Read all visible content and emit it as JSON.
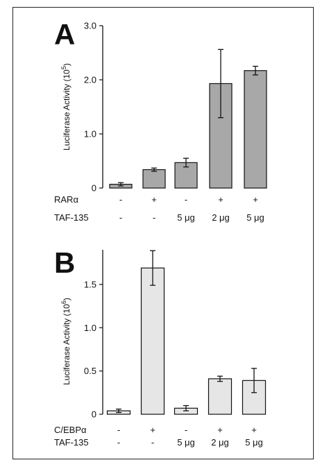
{
  "chart_data": [
    {
      "type": "bar",
      "panel": "A",
      "ylabel": "Luciferase Activity",
      "yunit_base": "(10",
      "yunit_exp": "5",
      "yunit_close": ")",
      "ylim": [
        0,
        3.0
      ],
      "yticks": [
        {
          "value": 0,
          "label": "0"
        },
        {
          "value": 1.0,
          "label": "1.0"
        },
        {
          "value": 2.0,
          "label": "2.0"
        },
        {
          "value": 3.0,
          "label": "3.0"
        }
      ],
      "bar_color": "#a8a8a8",
      "values": [
        0.07,
        0.34,
        0.47,
        1.93,
        2.17
      ],
      "errors": [
        0.03,
        0.03,
        0.08,
        0.63,
        0.08
      ],
      "condition_rows": [
        {
          "label": "RARα",
          "values": [
            "-",
            "+",
            "-",
            "+",
            "+"
          ]
        },
        {
          "label": "TAF-135",
          "values": [
            "-",
            "-",
            "5 μg",
            "2 μg",
            "5 μg"
          ]
        }
      ]
    },
    {
      "type": "bar",
      "panel": "B",
      "ylabel": "Luciferase Activity",
      "yunit_base": "(10",
      "yunit_exp": "6",
      "yunit_close": ")",
      "ylim": [
        0,
        1.9
      ],
      "yticks": [
        {
          "value": 0,
          "label": "0"
        },
        {
          "value": 0.5,
          "label": "0.5"
        },
        {
          "value": 1.0,
          "label": "1.0"
        },
        {
          "value": 1.5,
          "label": "1.5"
        }
      ],
      "bar_color": "#e6e6e6",
      "values": [
        0.04,
        1.69,
        0.07,
        0.41,
        0.39
      ],
      "errors": [
        0.02,
        0.2,
        0.03,
        0.03,
        0.14
      ],
      "condition_rows": [
        {
          "label": "C/EBPα",
          "values": [
            "-",
            "+",
            "-",
            "+",
            "+"
          ]
        },
        {
          "label": "TAF-135",
          "values": [
            "-",
            "-",
            "5 μg",
            "2 μg",
            "5 μg"
          ]
        }
      ]
    }
  ]
}
